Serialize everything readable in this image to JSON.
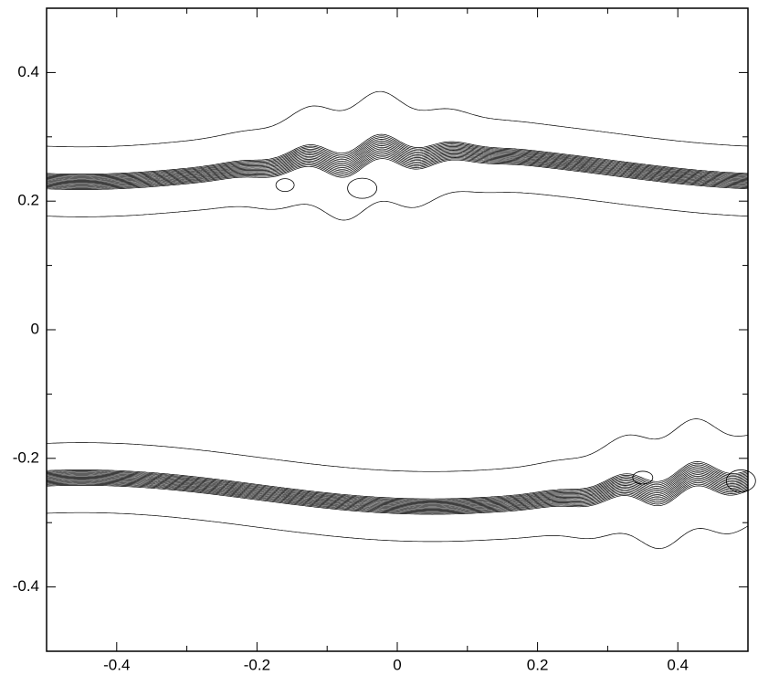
{
  "chart_data": {
    "type": "contour",
    "xlim": [
      -0.5,
      0.5
    ],
    "ylim": [
      -0.5,
      0.5
    ],
    "xticks": [
      -0.4,
      -0.2,
      0,
      0.2,
      0.4
    ],
    "yticks": [
      -0.4,
      -0.2,
      0,
      0.2,
      0.4
    ],
    "xminorticks": [
      -0.5,
      -0.3,
      -0.1,
      0.1,
      0.3,
      0.5
    ],
    "yminorticks": [
      -0.5,
      -0.3,
      -0.1,
      0.1,
      0.3,
      0.5
    ],
    "color": "#000000"
  }
}
